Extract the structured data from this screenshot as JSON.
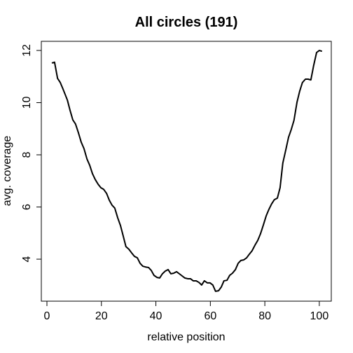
{
  "chart_data": {
    "type": "line",
    "title": "All circles (191)",
    "xlabel": "relative position",
    "ylabel": "avg. coverage",
    "x": [
      1.8,
      2.8,
      3.9,
      4.9,
      5.9,
      7.5,
      8.5,
      9.5,
      10.5,
      11.6,
      12.6,
      13.6,
      14.7,
      15.7,
      16.7,
      17.7,
      18.8,
      19.8,
      20.8,
      21.9,
      22.9,
      23.9,
      24.9,
      26.0,
      27.0,
      28.0,
      29.0,
      30.1,
      31.1,
      32.1,
      33.2,
      34.2,
      35.2,
      36.2,
      37.3,
      38.3,
      39.3,
      40.4,
      41.4,
      42.4,
      43.4,
      44.5,
      45.5,
      46.5,
      47.6,
      48.6,
      49.6,
      50.6,
      51.7,
      52.7,
      53.7,
      54.8,
      55.8,
      56.8,
      57.8,
      58.9,
      59.9,
      60.9,
      61.9,
      63.0,
      64.0,
      65.0,
      66.1,
      67.1,
      68.1,
      69.2,
      70.2,
      71.2,
      72.2,
      73.3,
      74.3,
      75.3,
      76.4,
      77.4,
      78.4,
      79.4,
      80.5,
      81.5,
      82.5,
      83.5,
      84.6,
      85.6,
      86.6,
      87.7,
      88.7,
      89.7,
      90.7,
      91.8,
      92.8,
      93.8,
      94.9,
      95.9,
      96.9,
      97.9,
      99.0,
      100.0,
      101.0
    ],
    "series": [
      {
        "name": "avg. coverage",
        "color": "#000000",
        "values": [
          11.52,
          11.55,
          10.93,
          10.77,
          10.52,
          10.1,
          9.7,
          9.34,
          9.18,
          8.83,
          8.48,
          8.24,
          7.84,
          7.6,
          7.28,
          7.06,
          6.87,
          6.74,
          6.68,
          6.52,
          6.26,
          6.07,
          5.96,
          5.58,
          5.29,
          4.89,
          4.48,
          4.38,
          4.24,
          4.11,
          4.05,
          3.84,
          3.73,
          3.7,
          3.68,
          3.57,
          3.38,
          3.3,
          3.28,
          3.44,
          3.54,
          3.6,
          3.44,
          3.46,
          3.52,
          3.44,
          3.36,
          3.28,
          3.25,
          3.25,
          3.17,
          3.17,
          3.11,
          3.01,
          3.17,
          3.09,
          3.09,
          3.01,
          2.77,
          2.79,
          2.93,
          3.17,
          3.19,
          3.38,
          3.46,
          3.6,
          3.84,
          3.95,
          3.97,
          4.05,
          4.19,
          4.32,
          4.54,
          4.72,
          4.97,
          5.29,
          5.66,
          5.91,
          6.12,
          6.28,
          6.34,
          6.74,
          7.68,
          8.19,
          8.67,
          8.97,
          9.32,
          10.01,
          10.44,
          10.77,
          10.9,
          10.9,
          10.87,
          11.41,
          11.92,
          12.0,
          11.97
        ]
      }
    ],
    "xlim": [
      -2.06,
      104.4
    ],
    "ylim": [
      2.39,
      12.35
    ],
    "xticks": [
      0,
      20,
      40,
      60,
      80,
      100
    ],
    "yticks": [
      4,
      6,
      8,
      10,
      12
    ]
  }
}
